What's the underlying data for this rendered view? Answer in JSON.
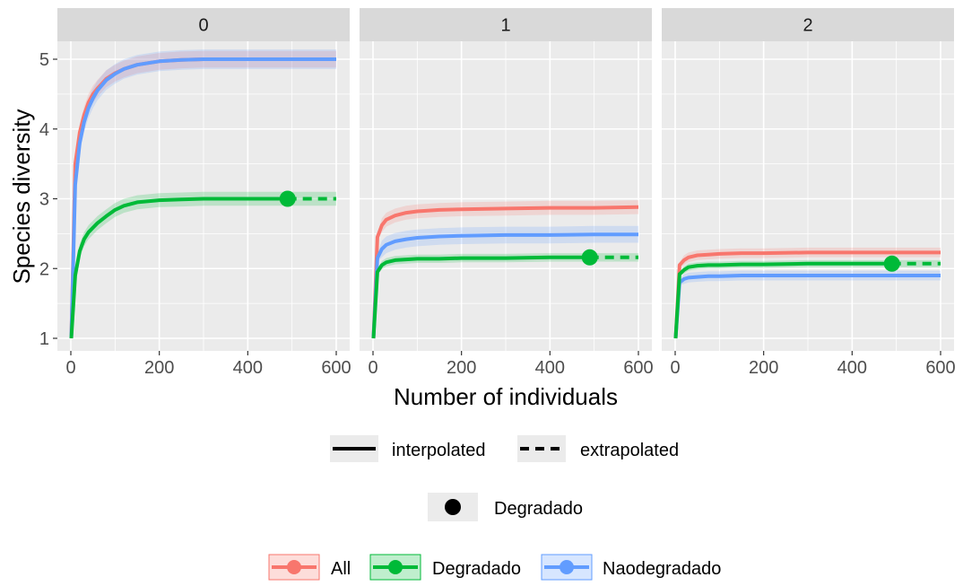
{
  "chart_data": {
    "type": "line",
    "xlabel": "Number of individuals",
    "ylabel": "Species diversity",
    "xlim": [
      0,
      600
    ],
    "ylim": [
      1,
      5
    ],
    "x_ticks": [
      "0",
      "200",
      "400",
      "600"
    ],
    "y_ticks": [
      "1",
      "2",
      "3",
      "4",
      "5"
    ],
    "grid": true,
    "legend_position": "bottom",
    "line_type_legend": {
      "solid": "interpolated",
      "dashed": "extrapolated"
    },
    "point_legend": "Degradado",
    "colors": {
      "All": "#F8766D",
      "Degradado": "#00BA38",
      "Naodegradado": "#619CFF"
    },
    "series_names": [
      "All",
      "Degradado",
      "Naodegradado"
    ],
    "panels": [
      {
        "strip": "0",
        "series": [
          {
            "name": "All",
            "reference_size": 600,
            "x": [
              1,
              10,
              20,
              30,
              40,
              50,
              60,
              80,
              100,
              120,
              150,
              200,
              250,
              300,
              350,
              400,
              450,
              500,
              550,
              600
            ],
            "y": [
              1.0,
              3.5,
              3.95,
              4.2,
              4.38,
              4.5,
              4.58,
              4.72,
              4.8,
              4.86,
              4.92,
              4.97,
              4.99,
              5.0,
              5.0,
              5.0,
              5.0,
              5.0,
              5.0,
              5.0
            ],
            "band": 0.12
          },
          {
            "name": "Degradado",
            "reference_size": 490,
            "x": [
              1,
              10,
              20,
              30,
              40,
              60,
              80,
              100,
              120,
              150,
              200,
              250,
              300,
              350,
              400,
              450,
              490,
              520,
              560,
              600
            ],
            "y": [
              1.0,
              1.9,
              2.25,
              2.42,
              2.52,
              2.65,
              2.75,
              2.84,
              2.9,
              2.95,
              2.98,
              2.99,
              3.0,
              3.0,
              3.0,
              3.0,
              3.0,
              3.0,
              3.0,
              3.0
            ],
            "band": 0.1
          },
          {
            "name": "Naodegradado",
            "reference_size": 600,
            "x": [
              1,
              10,
              20,
              30,
              40,
              50,
              60,
              80,
              100,
              120,
              150,
              200,
              250,
              300,
              350,
              400,
              450,
              500,
              550,
              600
            ],
            "y": [
              1.0,
              3.2,
              3.8,
              4.1,
              4.3,
              4.44,
              4.55,
              4.7,
              4.79,
              4.86,
              4.92,
              4.97,
              4.99,
              5.0,
              5.0,
              5.0,
              5.0,
              5.0,
              5.0,
              5.0
            ],
            "band": 0.14
          }
        ]
      },
      {
        "strip": "1",
        "series": [
          {
            "name": "All",
            "reference_size": 600,
            "x": [
              1,
              10,
              20,
              30,
              50,
              75,
              100,
              150,
              200,
              300,
              400,
              500,
              600
            ],
            "y": [
              1.0,
              2.45,
              2.62,
              2.7,
              2.76,
              2.8,
              2.82,
              2.84,
              2.85,
              2.86,
              2.87,
              2.87,
              2.88
            ],
            "band": 0.1
          },
          {
            "name": "Degradado",
            "reference_size": 490,
            "x": [
              1,
              10,
              20,
              30,
              50,
              75,
              100,
              150,
              200,
              300,
              400,
              490,
              550,
              600
            ],
            "y": [
              1.0,
              1.95,
              2.05,
              2.09,
              2.12,
              2.13,
              2.14,
              2.14,
              2.15,
              2.15,
              2.16,
              2.16,
              2.16,
              2.16
            ],
            "band": 0.06
          },
          {
            "name": "Naodegradado",
            "reference_size": 600,
            "x": [
              1,
              10,
              20,
              30,
              50,
              75,
              100,
              150,
              200,
              300,
              400,
              500,
              600
            ],
            "y": [
              1.0,
              2.15,
              2.28,
              2.34,
              2.39,
              2.42,
              2.44,
              2.46,
              2.47,
              2.48,
              2.48,
              2.49,
              2.49
            ],
            "band": 0.12
          }
        ]
      },
      {
        "strip": "2",
        "series": [
          {
            "name": "All",
            "reference_size": 600,
            "x": [
              1,
              10,
              20,
              30,
              50,
              75,
              100,
              150,
              200,
              300,
              400,
              500,
              600
            ],
            "y": [
              1.0,
              2.05,
              2.12,
              2.16,
              2.19,
              2.2,
              2.21,
              2.22,
              2.22,
              2.23,
              2.23,
              2.23,
              2.23
            ],
            "band": 0.07
          },
          {
            "name": "Degradado",
            "reference_size": 490,
            "x": [
              1,
              10,
              20,
              30,
              50,
              75,
              100,
              150,
              200,
              300,
              400,
              490,
              550,
              600
            ],
            "y": [
              1.0,
              1.92,
              1.98,
              2.02,
              2.04,
              2.05,
              2.05,
              2.06,
              2.06,
              2.07,
              2.07,
              2.07,
              2.07,
              2.07
            ],
            "band": 0.05
          },
          {
            "name": "Naodegradado",
            "reference_size": 600,
            "x": [
              1,
              10,
              20,
              30,
              50,
              75,
              100,
              150,
              200,
              300,
              400,
              500,
              600
            ],
            "y": [
              1.0,
              1.8,
              1.85,
              1.87,
              1.88,
              1.89,
              1.89,
              1.9,
              1.9,
              1.9,
              1.9,
              1.9,
              1.9
            ],
            "band": 0.07
          }
        ]
      }
    ]
  }
}
